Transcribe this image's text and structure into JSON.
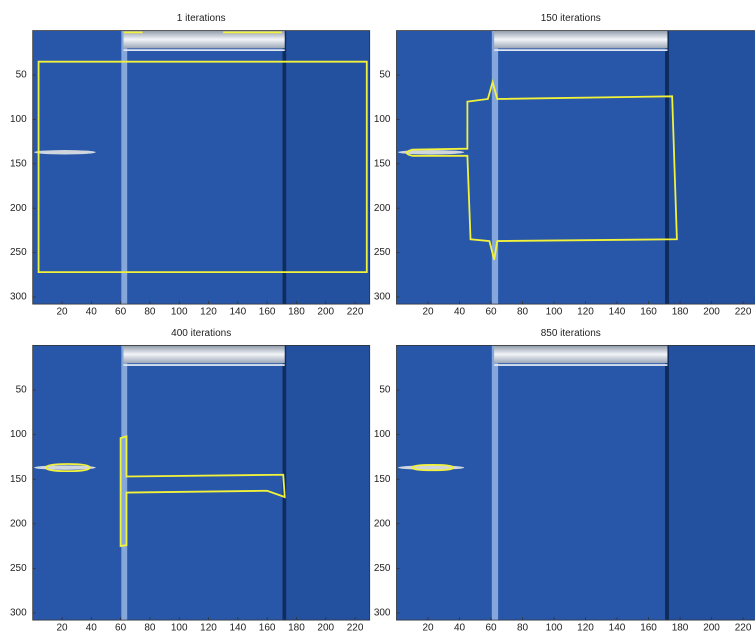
{
  "panels": [
    {
      "title": "1 iterations",
      "xlim": [
        0,
        230
      ],
      "ylim": [
        0,
        308
      ],
      "xticks": [
        20,
        40,
        60,
        80,
        100,
        120,
        140,
        160,
        180,
        200,
        220
      ],
      "yticks": [
        50,
        100,
        150,
        200,
        250,
        300
      ]
    },
    {
      "title": "150 iterations",
      "xlim": [
        0,
        230
      ],
      "ylim": [
        0,
        308
      ],
      "xticks": [
        20,
        40,
        60,
        80,
        100,
        120,
        140,
        160,
        180,
        200,
        220
      ],
      "yticks": [
        50,
        100,
        150,
        200,
        250,
        300
      ]
    },
    {
      "title": "400 iterations",
      "xlim": [
        0,
        230
      ],
      "ylim": [
        0,
        308
      ],
      "xticks": [
        20,
        40,
        60,
        80,
        100,
        120,
        140,
        160,
        180,
        200,
        220
      ],
      "yticks": [
        50,
        100,
        150,
        200,
        250,
        300
      ]
    },
    {
      "title": "850 iterations",
      "xlim": [
        0,
        230
      ],
      "ylim": [
        0,
        308
      ],
      "xticks": [
        20,
        40,
        60,
        80,
        100,
        120,
        140,
        160,
        180,
        200,
        220
      ],
      "yticks": [
        50,
        100,
        150,
        200,
        250,
        300
      ]
    }
  ]
}
